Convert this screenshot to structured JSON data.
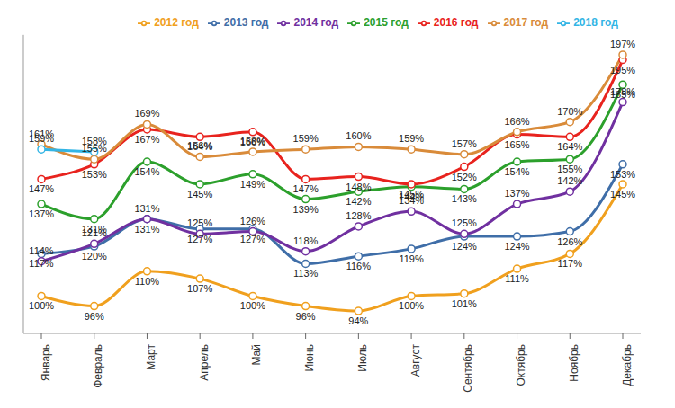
{
  "chart_data": {
    "type": "line",
    "categories": [
      "Январь",
      "Февраль",
      "Март",
      "Апрель",
      "Май",
      "Июнь",
      "Июль",
      "Август",
      "Сентябрь",
      "Октябрь",
      "Ноябрь",
      "Декабрь"
    ],
    "series": [
      {
        "name": "2012 год",
        "color": "#f0a01e",
        "values": [
          100,
          96,
          110,
          107,
          100,
          96,
          94,
          100,
          101,
          111,
          117,
          145
        ],
        "value_labels": [
          "100%",
          "96%",
          "110%",
          "107%",
          "100%",
          "96%",
          "94%",
          "100%",
          "101%",
          "111%",
          "117%",
          "145%"
        ]
      },
      {
        "name": "2013 год",
        "color": "#3f6ea8",
        "values": [
          117,
          120,
          131,
          127,
          127,
          113,
          116,
          119,
          124,
          124,
          126,
          153
        ],
        "value_labels": [
          "117%",
          "120%",
          "131%",
          "127%",
          "127%",
          "113%",
          "116%",
          "119%",
          "124%",
          "124%",
          "126%",
          "153%"
        ]
      },
      {
        "name": "2014 год",
        "color": "#7030a0",
        "values": [
          114,
          121,
          131,
          125,
          126,
          118,
          128,
          134,
          125,
          137,
          142,
          178
        ],
        "value_labels": [
          "114%",
          "121%",
          "131%",
          "125%",
          "126%",
          "118%",
          "128%",
          "134%",
          "125%",
          "137%",
          "142%",
          "178%"
        ]
      },
      {
        "name": "2015 год",
        "color": "#2ca02c",
        "values": [
          137,
          131,
          154,
          145,
          149,
          139,
          142,
          144,
          143,
          154,
          155,
          185
        ],
        "value_labels": [
          "137%",
          "131%",
          "154%",
          "145%",
          "149%",
          "139%",
          "142%",
          "144%",
          "143%",
          "154%",
          "155%",
          "185%"
        ]
      },
      {
        "name": "2016 год",
        "color": "#e8231e",
        "values": [
          147,
          153,
          167,
          164,
          166,
          147,
          148,
          145,
          152,
          165,
          164,
          195
        ],
        "value_labels": [
          "147%",
          "153%",
          "167%",
          "164%",
          "166%",
          "147%",
          "148%",
          "145%",
          "152%",
          "165%",
          "164%",
          "195%"
        ]
      },
      {
        "name": "2017 год",
        "color": "#d98b3a",
        "values": [
          161,
          155,
          169,
          156,
          158,
          159,
          160,
          159,
          157,
          166,
          170,
          197
        ],
        "value_labels": [
          "161%",
          "155%",
          "169%",
          "156%",
          "158%",
          "159%",
          "160%",
          "159%",
          "157%",
          "166%",
          "170%",
          "197%"
        ]
      },
      {
        "name": "2018 год",
        "color": "#33b5e5",
        "values": [
          159,
          158,
          null,
          null,
          null,
          null,
          null,
          null,
          null,
          null,
          null,
          null
        ],
        "value_labels": [
          "159%",
          "158%",
          null,
          null,
          null,
          null,
          null,
          null,
          null,
          null,
          null,
          null
        ]
      }
    ],
    "ylim": [
      85,
      205
    ],
    "yticks": [],
    "tick_labels": "x",
    "legend": "top",
    "data_labels": true,
    "marker": "circle"
  }
}
